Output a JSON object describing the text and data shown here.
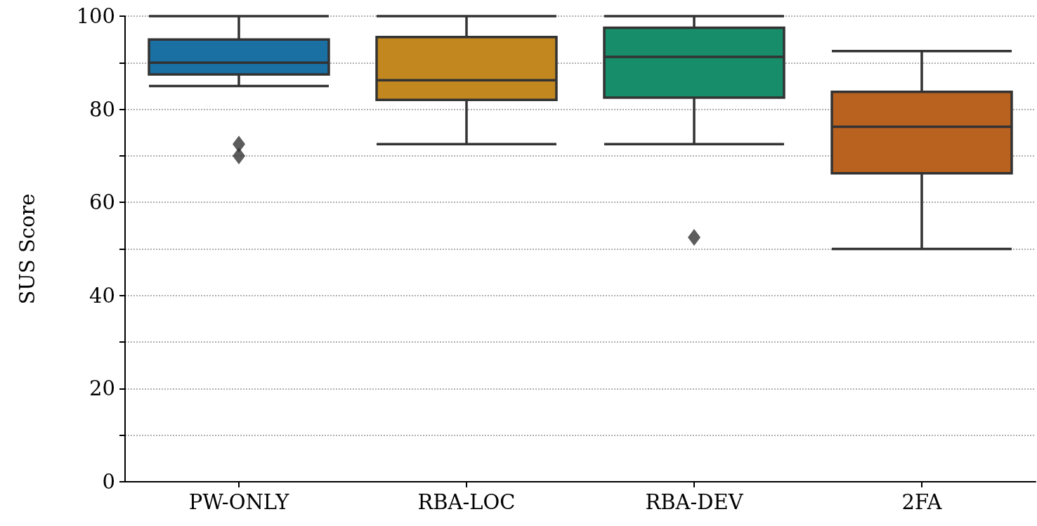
{
  "chart_data": {
    "type": "box",
    "ylabel": "SUS Score",
    "categories": [
      "PW-ONLY",
      "RBA-LOC",
      "RBA-DEV",
      "2FA"
    ],
    "colors": [
      "#1a6fa3",
      "#c2871f",
      "#178d6a",
      "#b9611f"
    ],
    "boxes": [
      {
        "low": 85,
        "q1": 87.5,
        "median": 90,
        "q3": 95,
        "high": 100,
        "outliers": [
          72.5,
          70
        ]
      },
      {
        "low": 72.5,
        "q1": 82,
        "median": 86.25,
        "q3": 95.5,
        "high": 100
      },
      {
        "low": 72.5,
        "q1": 82.5,
        "median": 91.25,
        "q3": 97.5,
        "high": 100,
        "outliers": [
          52.5
        ]
      },
      {
        "low": 50,
        "q1": 66.25,
        "median": 76.25,
        "q3": 83.75,
        "high": 92.5
      }
    ],
    "ylim": [
      0,
      100
    ],
    "yticks": [
      0,
      {
        "value": 10,
        "label": null
      },
      20,
      {
        "value": 30,
        "label": null
      },
      40,
      {
        "value": 50,
        "label": null
      },
      60,
      {
        "value": 70,
        "label": null
      },
      80,
      {
        "value": 90,
        "label": null
      },
      100
    ],
    "grid": "y",
    "marker": "diamond"
  }
}
